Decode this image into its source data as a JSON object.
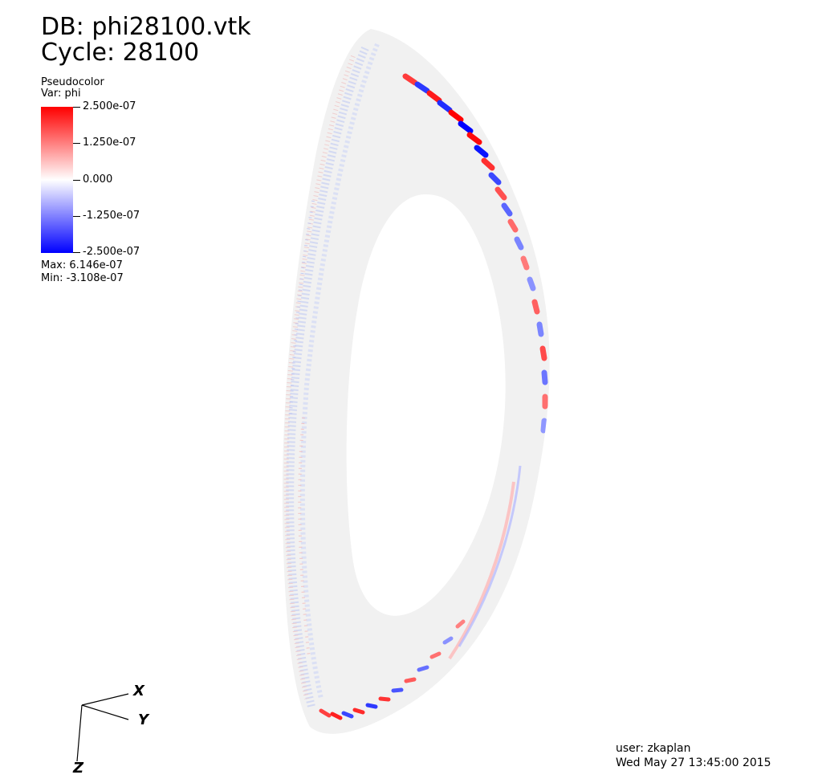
{
  "header": {
    "db_label": "DB: phi28100.vtk",
    "cycle_label": "Cycle: 28100"
  },
  "legend": {
    "plot_type": "Pseudocolor",
    "variable": "Var: phi",
    "ticks": [
      "2.500e-07",
      "1.250e-07",
      "0.000",
      "-1.250e-07",
      "-2.500e-07"
    ],
    "max": "Max:  6.146e-07",
    "min": "Min: -3.108e-07",
    "colors": {
      "high": "#ff0000",
      "mid": "#ffffff",
      "low": "#0000ff"
    }
  },
  "axes": {
    "x": "X",
    "y": "Y",
    "z": "Z"
  },
  "footer": {
    "user": "user: zkaplan",
    "timestamp": "Wed May 27 13:45:00 2015"
  }
}
